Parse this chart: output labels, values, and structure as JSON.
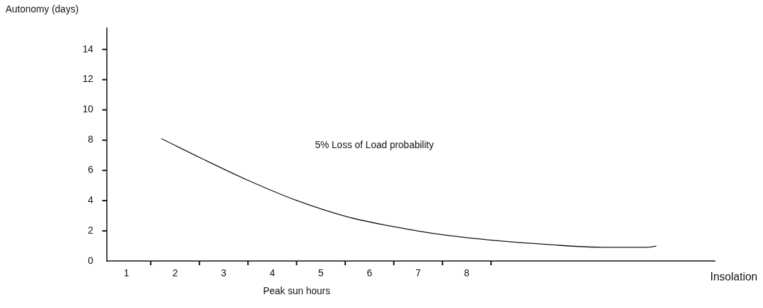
{
  "chart_data": {
    "type": "line",
    "xlabel": "Peak sun hours",
    "ylabel": "Autonomy (days)",
    "x": [
      1.72,
      2.54,
      3.51,
      4.51,
      5.58,
      6.57,
      7.47,
      8.57,
      9.67,
      10.77,
      11.72,
      11.9
    ],
    "series": [
      {
        "color": "#111111",
        "values": [
          8.1,
          6.8,
          5.33,
          4.0,
          2.9,
          2.24,
          1.76,
          1.37,
          1.1,
          0.92,
          0.92,
          1.0
        ]
      }
    ],
    "xlim": [
      0.6,
      13.1
    ],
    "xticks": [
      1,
      2,
      3,
      4,
      5,
      6,
      7,
      8,
      {
        "value": 1.5,
        "label": null
      },
      {
        "value": 2.5,
        "label": null
      },
      {
        "value": 3.5,
        "label": null
      },
      {
        "value": 4.5,
        "label": null
      },
      {
        "value": 5.5,
        "label": null
      },
      {
        "value": 6.5,
        "label": null
      },
      {
        "value": 7.5,
        "label": null
      },
      {
        "value": 8.5,
        "label": null
      }
    ],
    "ylim": [
      0,
      15.4
    ],
    "yticks": [
      0,
      2,
      4,
      6,
      8,
      10,
      12,
      14
    ],
    "annotations": [
      "5% Loss of Load probability",
      "Insolation"
    ],
    "grid": false,
    "legend": false,
    "marker": "none",
    "line_style": "solid"
  }
}
